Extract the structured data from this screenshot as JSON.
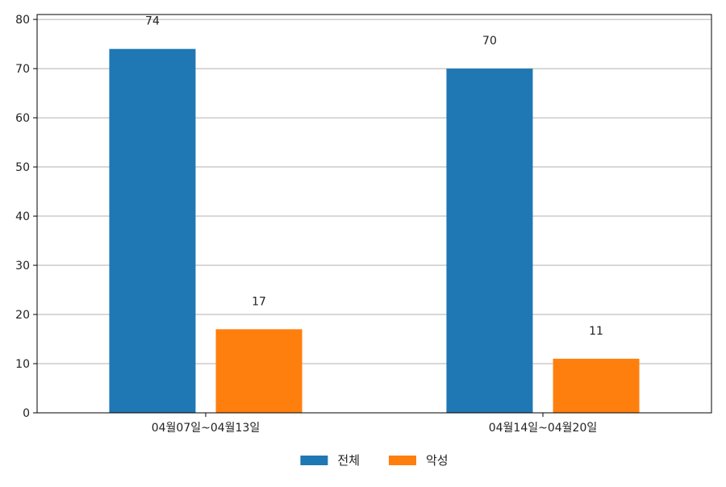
{
  "chart_data": {
    "type": "bar",
    "categories": [
      "04월07일~04월13일",
      "04월14일~04월20일"
    ],
    "series": [
      {
        "name": "전체",
        "values": [
          74,
          70
        ],
        "color": "#1f77b4"
      },
      {
        "name": "악성",
        "values": [
          17,
          11
        ],
        "color": "#ff7f0e"
      }
    ],
    "title": "",
    "xlabel": "",
    "ylabel": "",
    "ylim": [
      0,
      81
    ],
    "yticks": [
      0,
      10,
      20,
      30,
      40,
      50,
      60,
      70,
      80
    ],
    "grid": {
      "y": true,
      "x": false
    },
    "legend": {
      "placement": "bottom-center",
      "entries": [
        "전체",
        "악성"
      ]
    },
    "data_labels": true
  }
}
